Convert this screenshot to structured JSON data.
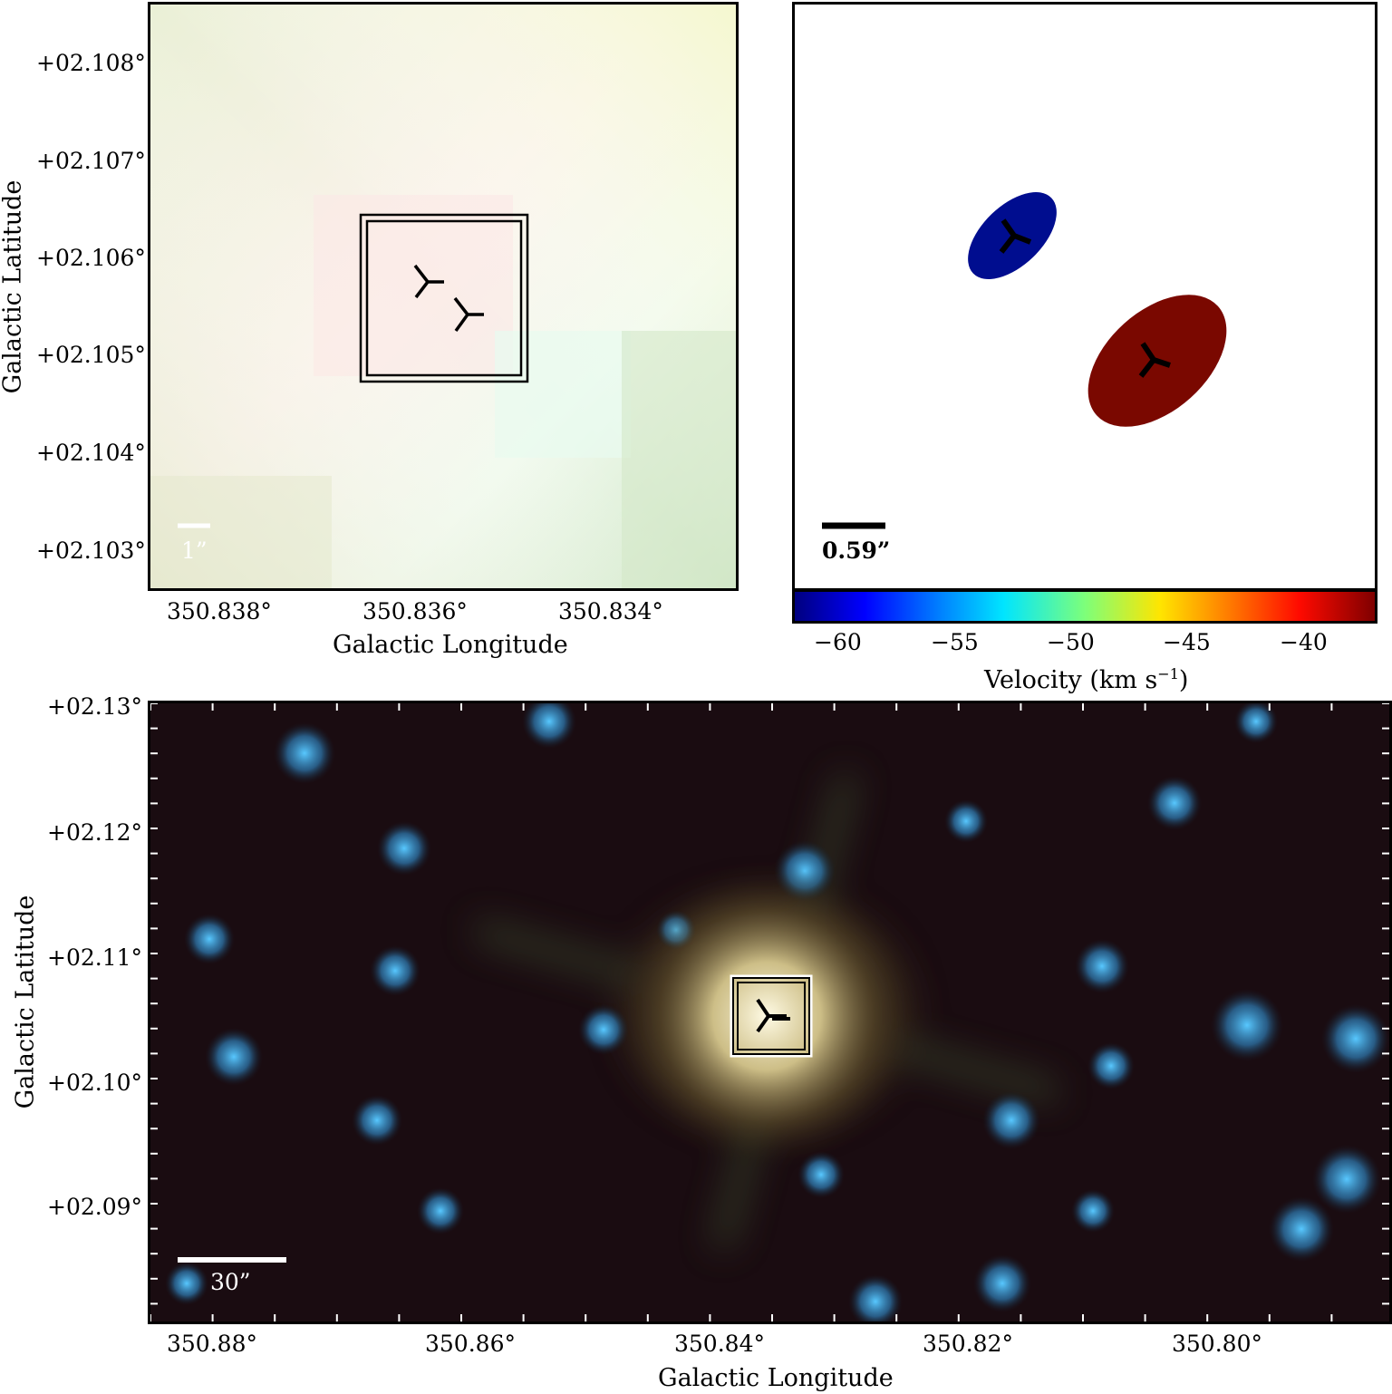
{
  "panel_a": {
    "y_ticks": [
      "+02.108°",
      "+02.107°",
      "+02.106°",
      "+02.105°",
      "+02.104°",
      "+02.103°"
    ],
    "x_ticks": [
      "350.838°",
      "350.836°",
      "350.834°"
    ],
    "xlabel": "Galactic Longitude",
    "ylabel": "Galactic Latitude",
    "scalebar": "1”",
    "markers": 2
  },
  "panel_b": {
    "scalebar": "0.59”",
    "colorbar_ticks": [
      "−60",
      "−55",
      "−50",
      "−45",
      "−40"
    ],
    "colorbar_label_main": "Velocity (km s",
    "colorbar_label_sup": "−1",
    "colorbar_label_end": ")",
    "components": [
      {
        "velocity": -61,
        "color": "#000d8f"
      },
      {
        "velocity": -38,
        "color": "#7a0800"
      }
    ]
  },
  "panel_c": {
    "y_ticks": [
      "+02.13°",
      "+02.12°",
      "+02.11°",
      "+02.10°",
      "+02.09°"
    ],
    "x_ticks": [
      "350.88°",
      "350.86°",
      "350.84°",
      "350.82°",
      "350.80°"
    ],
    "xlabel": "Galactic Longitude",
    "ylabel": "Galactic Latitude",
    "scalebar": "30”"
  }
}
